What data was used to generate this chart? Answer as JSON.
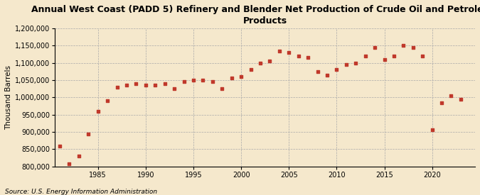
{
  "title": "Annual West Coast (PADD 5) Refinery and Blender Net Production of Crude Oil and Petroleum\nProducts",
  "ylabel": "Thousand Barrels",
  "source": "Source: U.S. Energy Information Administration",
  "background_color": "#f5e8cc",
  "plot_background_color": "#f5e8cc",
  "marker_color": "#c0392b",
  "years": [
    1981,
    1982,
    1983,
    1984,
    1985,
    1986,
    1987,
    1988,
    1989,
    1990,
    1991,
    1992,
    1993,
    1994,
    1995,
    1996,
    1997,
    1998,
    1999,
    2000,
    2001,
    2002,
    2003,
    2004,
    2005,
    2006,
    2007,
    2008,
    2009,
    2010,
    2011,
    2012,
    2013,
    2014,
    2015,
    2016,
    2017,
    2018,
    2019,
    2020,
    2021,
    2022,
    2023
  ],
  "values": [
    858000,
    808000,
    830000,
    893000,
    960000,
    990000,
    1030000,
    1035000,
    1040000,
    1035000,
    1035000,
    1040000,
    1025000,
    1045000,
    1050000,
    1050000,
    1045000,
    1025000,
    1055000,
    1060000,
    1080000,
    1100000,
    1105000,
    1135000,
    1130000,
    1120000,
    1115000,
    1075000,
    1065000,
    1080000,
    1095000,
    1100000,
    1120000,
    1145000,
    1110000,
    1120000,
    1150000,
    1145000,
    1120000,
    905000,
    985000,
    1005000,
    995000
  ],
  "ylim": [
    800000,
    1200000
  ],
  "yticks": [
    800000,
    850000,
    900000,
    950000,
    1000000,
    1050000,
    1100000,
    1150000,
    1200000
  ],
  "xlim": [
    1980.5,
    2024.5
  ],
  "xticks": [
    1985,
    1990,
    1995,
    2000,
    2005,
    2010,
    2015,
    2020
  ],
  "title_fontsize": 9,
  "label_fontsize": 7.5,
  "tick_fontsize": 7,
  "source_fontsize": 6.5
}
